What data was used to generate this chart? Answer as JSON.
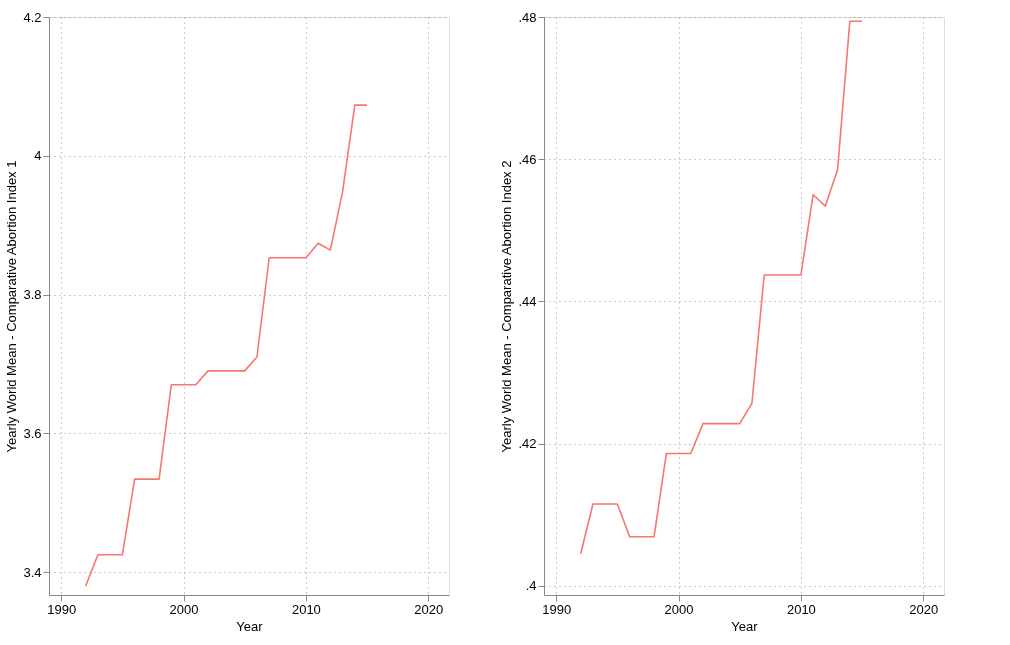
{
  "chart_data": [
    {
      "type": "line",
      "xlabel": "Year",
      "ylabel": "Yearly World Mean - Comparative Abortion Index 1",
      "x": [
        1992,
        1993,
        1994,
        1995,
        1996,
        1997,
        1998,
        1999,
        2000,
        2001,
        2002,
        2003,
        2004,
        2005,
        2006,
        2007,
        2008,
        2009,
        2010,
        2011,
        2012,
        2013,
        2014,
        2015
      ],
      "series": [
        {
          "color": "#f8766d",
          "values": [
            3.38,
            3.425,
            3.425,
            3.425,
            3.534,
            3.534,
            3.534,
            3.67,
            3.67,
            3.67,
            3.69,
            3.69,
            3.69,
            3.69,
            3.71,
            3.853,
            3.853,
            3.853,
            3.853,
            3.874,
            3.864,
            3.948,
            4.073,
            4.073
          ]
        }
      ],
      "xlim": [
        1989,
        2021.7
      ],
      "xticks": [
        1990,
        2000,
        2010,
        2020
      ],
      "ylim": [
        3.367,
        4.2
      ],
      "yticks": [
        3.4,
        3.6,
        3.8,
        4,
        4.2
      ],
      "grid": true,
      "line_style": "solid"
    },
    {
      "type": "line",
      "xlabel": "Year",
      "ylabel": "Yearly World Mean - Comparative Abortion Index 2",
      "x": [
        1992,
        1993,
        1994,
        1995,
        1996,
        1997,
        1998,
        1999,
        2000,
        2001,
        2002,
        2003,
        2004,
        2005,
        2006,
        2007,
        2008,
        2009,
        2010,
        2011,
        2012,
        2013,
        2014,
        2015
      ],
      "series": [
        {
          "color": "#f8766d",
          "values": [
            0.4045,
            0.4115,
            0.4115,
            0.4115,
            0.4069,
            0.4069,
            0.4069,
            0.4186,
            0.4186,
            0.4186,
            0.4228,
            0.4228,
            0.4228,
            0.4228,
            0.4257,
            0.4437,
            0.4437,
            0.4437,
            0.4437,
            0.455,
            0.4534,
            0.4585,
            0.4794,
            0.4794
          ]
        }
      ],
      "xlim": [
        1989,
        2021.7
      ],
      "xticks": [
        1990,
        2000,
        2010,
        2020
      ],
      "ylim": [
        0.3987,
        0.48
      ],
      "yticks": [
        {
          "value": 0.4,
          "label": ".4"
        },
        {
          "value": 0.42,
          "label": ".42"
        },
        {
          "value": 0.44,
          "label": ".44"
        },
        {
          "value": 0.46,
          "label": ".46"
        },
        {
          "value": 0.48,
          "label": ".48"
        }
      ],
      "grid": true,
      "line_style": "solid"
    }
  ]
}
